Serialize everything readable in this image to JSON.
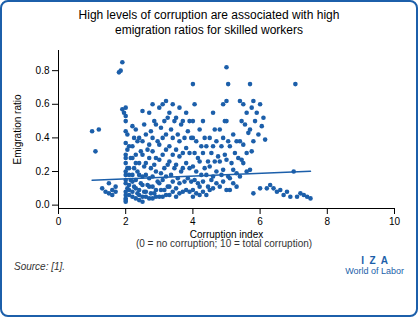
{
  "chart_data": {
    "type": "scatter",
    "title": "High levels of corruption are associated with high\nemigration ratios for skilled workers",
    "xlabel": "Corruption index",
    "ylabel": "Emigration ratio",
    "annotations": [
      "(0 = no corruption; 10 = total corruption)",
      "Source: [1].",
      "I  Z  A",
      "World of Labor"
    ],
    "color": "#1c5faa",
    "grid": false,
    "xlim": [
      0,
      10
    ],
    "ylim": [
      -0.02,
      0.92
    ],
    "xticks": [
      0,
      2,
      4,
      6,
      8,
      10
    ],
    "yticks": [
      {
        "value": 0.0,
        "label": "0.0"
      },
      0.2,
      0.4,
      0.6,
      0.8
    ],
    "series": [
      {
        "type": "scatter",
        "color": "#1c5faa",
        "x": [
          1.0,
          1.1,
          1.2,
          1.3,
          1.4,
          1.5,
          1.5,
          1.6,
          1.6,
          1.7,
          1.7,
          1.8,
          1.85,
          1.9,
          1.9,
          1.95,
          2.0,
          2.0,
          2.0,
          2.0,
          2.05,
          2.0,
          2.05,
          2.0,
          2.0,
          2.0,
          2.05,
          2.0,
          2.0,
          2.0,
          2.0,
          2.05,
          2.0,
          2.0,
          2.0,
          2.0,
          2.0,
          2.1,
          2.15,
          2.1,
          2.1,
          2.15,
          2.1,
          2.1,
          2.1,
          2.2,
          2.25,
          2.2,
          2.2,
          2.25,
          2.2,
          2.2,
          2.25,
          2.2,
          2.2,
          2.3,
          2.35,
          2.3,
          2.3,
          2.35,
          2.3,
          2.3,
          2.35,
          2.3,
          2.4,
          2.45,
          2.4,
          2.4,
          2.45,
          2.4,
          2.4,
          2.4,
          2.5,
          2.55,
          2.5,
          2.5,
          2.55,
          2.5,
          2.5,
          2.55,
          2.5,
          2.5,
          2.6,
          2.65,
          2.6,
          2.6,
          2.65,
          2.6,
          2.6,
          2.7,
          2.75,
          2.7,
          2.7,
          2.75,
          2.7,
          2.7,
          2.75,
          2.7,
          2.8,
          2.85,
          2.8,
          2.8,
          2.85,
          2.8,
          2.8,
          2.85,
          2.8,
          2.9,
          2.95,
          2.9,
          2.9,
          2.95,
          2.9,
          2.9,
          3.0,
          3.05,
          3.0,
          3.0,
          3.05,
          3.0,
          3.05,
          3.0,
          3.1,
          3.15,
          3.1,
          3.1,
          3.15,
          3.1,
          3.15,
          3.1,
          3.2,
          3.25,
          3.2,
          3.2,
          3.25,
          3.2,
          3.25,
          3.2,
          3.3,
          3.35,
          3.3,
          3.3,
          3.35,
          3.3,
          3.3,
          3.4,
          3.45,
          3.4,
          3.4,
          3.45,
          3.4,
          3.4,
          3.5,
          3.55,
          3.5,
          3.5,
          3.55,
          3.5,
          3.5,
          3.6,
          3.65,
          3.6,
          3.6,
          3.65,
          3.6,
          3.6,
          3.7,
          3.75,
          3.7,
          3.7,
          3.75,
          3.7,
          3.8,
          3.85,
          3.8,
          3.8,
          3.85,
          3.8,
          3.9,
          3.95,
          3.9,
          3.9,
          3.95,
          3.9,
          4.0,
          4.05,
          4.0,
          4.0,
          4.05,
          4.0,
          4.05,
          4.0,
          4.0,
          4.1,
          4.15,
          4.1,
          4.15,
          4.1,
          4.2,
          4.25,
          4.2,
          4.25,
          4.2,
          4.2,
          4.3,
          4.35,
          4.3,
          4.35,
          4.3,
          4.3,
          4.4,
          4.45,
          4.4,
          4.45,
          4.4,
          4.5,
          4.55,
          4.5,
          4.55,
          4.5,
          4.6,
          4.65,
          4.6,
          4.65,
          4.6,
          4.6,
          4.7,
          4.75,
          4.7,
          4.7,
          4.8,
          4.85,
          4.8,
          4.85,
          4.8,
          4.9,
          4.95,
          4.9,
          4.95,
          4.9,
          4.9,
          5.0,
          5.05,
          5.0,
          5.0,
          5.05,
          5.0,
          5.05,
          5.0,
          5.1,
          5.15,
          5.1,
          5.1,
          5.2,
          5.25,
          5.2,
          5.2,
          5.3,
          5.35,
          5.3,
          5.3,
          5.4,
          5.45,
          5.4,
          5.45,
          5.4,
          5.5,
          5.55,
          5.5,
          5.5,
          5.6,
          5.65,
          5.6,
          5.6,
          5.7,
          5.75,
          5.7,
          5.75,
          5.7,
          5.8,
          5.85,
          5.8,
          5.8,
          5.9,
          5.95,
          6.0,
          6.05,
          6.0,
          6.1,
          6.15,
          6.2,
          6.3,
          6.4,
          6.5,
          6.6,
          6.7,
          6.8,
          6.9,
          7.0,
          7.05,
          7.1,
          7.2,
          7.3,
          7.4,
          7.5
        ],
        "values": [
          0.44,
          0.32,
          0.45,
          0.1,
          0.08,
          0.13,
          0.07,
          0.06,
          0.09,
          0.08,
          0.11,
          0.79,
          0.8,
          0.85,
          0.57,
          0.55,
          0.58,
          0.53,
          0.5,
          0.44,
          0.42,
          0.37,
          0.33,
          0.3,
          0.28,
          0.25,
          0.22,
          0.2,
          0.18,
          0.15,
          0.13,
          0.1,
          0.08,
          0.06,
          0.04,
          0.03,
          0.02,
          0.35,
          0.28,
          0.22,
          0.18,
          0.15,
          0.12,
          0.09,
          0.06,
          0.47,
          0.4,
          0.35,
          0.28,
          0.22,
          0.18,
          0.14,
          0.11,
          0.08,
          0.05,
          0.45,
          0.38,
          0.3,
          0.25,
          0.2,
          0.15,
          0.1,
          0.07,
          0.04,
          0.4,
          0.32,
          0.25,
          0.18,
          0.13,
          0.09,
          0.06,
          0.03,
          0.56,
          0.48,
          0.38,
          0.3,
          0.23,
          0.17,
          0.12,
          0.08,
          0.05,
          0.02,
          0.42,
          0.33,
          0.25,
          0.18,
          0.12,
          0.08,
          0.05,
          0.55,
          0.44,
          0.36,
          0.28,
          0.22,
          0.16,
          0.11,
          0.07,
          0.04,
          0.6,
          0.5,
          0.4,
          0.32,
          0.24,
          0.17,
          0.11,
          0.07,
          0.04,
          0.48,
          0.38,
          0.28,
          0.2,
          0.14,
          0.09,
          0.05,
          0.58,
          0.46,
          0.36,
          0.27,
          0.19,
          0.13,
          0.09,
          0.05,
          0.6,
          0.5,
          0.4,
          0.3,
          0.22,
          0.15,
          0.09,
          0.05,
          0.62,
          0.52,
          0.42,
          0.33,
          0.24,
          0.17,
          0.11,
          0.06,
          0.55,
          0.45,
          0.35,
          0.26,
          0.18,
          0.11,
          0.06,
          0.6,
          0.5,
          0.4,
          0.3,
          0.22,
          0.14,
          0.08,
          0.52,
          0.42,
          0.33,
          0.24,
          0.16,
          0.1,
          0.05,
          0.58,
          0.48,
          0.38,
          0.29,
          0.2,
          0.13,
          0.07,
          0.5,
          0.4,
          0.31,
          0.22,
          0.14,
          0.08,
          0.55,
          0.44,
          0.34,
          0.25,
          0.16,
          0.09,
          0.5,
          0.4,
          0.31,
          0.22,
          0.14,
          0.08,
          0.72,
          0.6,
          0.5,
          0.4,
          0.31,
          0.23,
          0.15,
          0.09,
          0.05,
          0.38,
          0.28,
          0.2,
          0.13,
          0.07,
          0.45,
          0.35,
          0.26,
          0.18,
          0.11,
          0.06,
          0.5,
          0.4,
          0.31,
          0.22,
          0.14,
          0.08,
          0.35,
          0.26,
          0.18,
          0.11,
          0.06,
          0.4,
          0.31,
          0.23,
          0.15,
          0.09,
          0.55,
          0.45,
          0.35,
          0.26,
          0.17,
          0.1,
          0.38,
          0.29,
          0.2,
          0.13,
          0.45,
          0.35,
          0.26,
          0.18,
          0.11,
          0.6,
          0.5,
          0.4,
          0.3,
          0.21,
          0.14,
          0.82,
          0.72,
          0.62,
          0.5,
          0.38,
          0.27,
          0.17,
          0.09,
          0.35,
          0.25,
          0.16,
          0.09,
          0.42,
          0.31,
          0.21,
          0.13,
          0.38,
          0.28,
          0.19,
          0.11,
          0.62,
          0.5,
          0.38,
          0.27,
          0.17,
          0.6,
          0.48,
          0.36,
          0.25,
          0.55,
          0.43,
          0.31,
          0.2,
          0.72,
          0.58,
          0.45,
          0.32,
          0.21,
          0.62,
          0.5,
          0.38,
          0.07,
          0.55,
          0.42,
          0.6,
          0.47,
          0.1,
          0.52,
          0.39,
          0.1,
          0.12,
          0.1,
          0.08,
          0.09,
          0.06,
          0.08,
          0.05,
          0.2,
          0.72,
          0.05,
          0.07,
          0.06,
          0.05,
          0.04
        ]
      },
      {
        "type": "line",
        "color": "#1c5faa",
        "x": [
          1.0,
          7.5
        ],
        "values": [
          0.148,
          0.202
        ]
      }
    ]
  }
}
